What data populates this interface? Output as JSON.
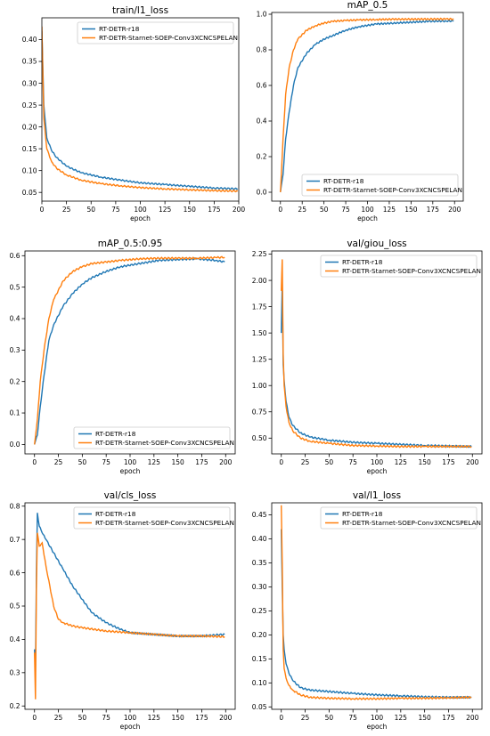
{
  "colors": {
    "baseline": "#1f77b4",
    "proposed": "#ff7f0e"
  },
  "chart_data": [
    {
      "type": "line",
      "title": "train/l1_loss",
      "xlabel": "epoch",
      "ylabel": "",
      "xlim": [
        0,
        200
      ],
      "ylim": [
        0.03,
        0.45
      ],
      "xticks": [
        0,
        25,
        50,
        75,
        100,
        125,
        150,
        175,
        200
      ],
      "yticks": [
        0.05,
        0.1,
        0.15,
        0.2,
        0.25,
        0.3,
        0.35,
        0.4
      ],
      "ytick_labels": [
        "0.05",
        "0.10",
        "0.15",
        "0.20",
        "0.25",
        "0.30",
        "0.35",
        "0.40"
      ],
      "legend": "top-right",
      "series": [
        {
          "name": "RT-DETR-r18",
          "color": "#1f77b4",
          "x": [
            0,
            2,
            5,
            10,
            15,
            25,
            40,
            60,
            80,
            100,
            125,
            150,
            175,
            199
          ],
          "y": [
            0.42,
            0.25,
            0.175,
            0.145,
            0.13,
            0.11,
            0.095,
            0.085,
            0.078,
            0.072,
            0.068,
            0.064,
            0.06,
            0.058
          ]
        },
        {
          "name": "RT-DETR-Starnet-SOEP-Conv3XCNCSPELAN",
          "color": "#ff7f0e",
          "x": [
            0,
            2,
            5,
            10,
            15,
            25,
            40,
            60,
            80,
            100,
            125,
            150,
            175,
            199
          ],
          "y": [
            0.43,
            0.22,
            0.15,
            0.12,
            0.105,
            0.09,
            0.078,
            0.07,
            0.065,
            0.061,
            0.058,
            0.056,
            0.054,
            0.053
          ]
        }
      ]
    },
    {
      "type": "line",
      "title": "mAP_0.5",
      "xlabel": "epoch",
      "ylabel": "",
      "xlim": [
        -10,
        210
      ],
      "ylim": [
        -0.05,
        1.01
      ],
      "xticks": [
        0,
        25,
        50,
        75,
        100,
        125,
        150,
        175,
        200
      ],
      "yticks": [
        0.0,
        0.2,
        0.4,
        0.6,
        0.8,
        1.0
      ],
      "ytick_labels": [
        "0.0",
        "0.2",
        "0.4",
        "0.6",
        "0.8",
        "1.0"
      ],
      "legend": "bottom-right",
      "series": [
        {
          "name": "RT-DETR-r18",
          "color": "#1f77b4",
          "x": [
            0,
            3,
            6,
            10,
            15,
            20,
            30,
            40,
            50,
            60,
            75,
            90,
            110,
            130,
            150,
            170,
            190,
            199
          ],
          "y": [
            0.0,
            0.1,
            0.3,
            0.45,
            0.6,
            0.7,
            0.78,
            0.83,
            0.86,
            0.88,
            0.91,
            0.93,
            0.945,
            0.95,
            0.955,
            0.96,
            0.962,
            0.962
          ]
        },
        {
          "name": "RT-DETR-Starnet-SOEP-Conv3XCNCSPELAN",
          "color": "#ff7f0e",
          "x": [
            0,
            3,
            6,
            10,
            15,
            20,
            30,
            40,
            50,
            60,
            75,
            90,
            110,
            130,
            150,
            170,
            190,
            199
          ],
          "y": [
            0.0,
            0.3,
            0.55,
            0.7,
            0.8,
            0.86,
            0.91,
            0.935,
            0.95,
            0.96,
            0.965,
            0.968,
            0.97,
            0.972,
            0.972,
            0.973,
            0.973,
            0.973
          ]
        }
      ]
    },
    {
      "type": "line",
      "title": "mAP_0.5:0.95",
      "xlabel": "epoch",
      "ylabel": "",
      "xlim": [
        -10,
        210
      ],
      "ylim": [
        -0.03,
        0.615
      ],
      "xticks": [
        0,
        25,
        50,
        75,
        100,
        125,
        150,
        175,
        200
      ],
      "yticks": [
        0.0,
        0.1,
        0.2,
        0.3,
        0.4,
        0.5,
        0.6
      ],
      "ytick_labels": [
        "0.0",
        "0.1",
        "0.2",
        "0.3",
        "0.4",
        "0.5",
        "0.6"
      ],
      "legend": "bottom-right",
      "series": [
        {
          "name": "RT-DETR-r18",
          "color": "#1f77b4",
          "x": [
            0,
            3,
            6,
            10,
            15,
            20,
            30,
            40,
            50,
            60,
            75,
            90,
            110,
            130,
            150,
            170,
            190,
            199
          ],
          "y": [
            0.0,
            0.03,
            0.12,
            0.22,
            0.33,
            0.38,
            0.44,
            0.48,
            0.51,
            0.53,
            0.55,
            0.565,
            0.575,
            0.585,
            0.588,
            0.59,
            0.585,
            0.58
          ]
        },
        {
          "name": "RT-DETR-Starnet-SOEP-Conv3XCNCSPELAN",
          "color": "#ff7f0e",
          "x": [
            0,
            3,
            6,
            10,
            15,
            20,
            30,
            40,
            50,
            60,
            75,
            90,
            110,
            130,
            150,
            170,
            190,
            199
          ],
          "y": [
            0.0,
            0.08,
            0.2,
            0.3,
            0.4,
            0.46,
            0.52,
            0.55,
            0.565,
            0.575,
            0.58,
            0.585,
            0.59,
            0.592,
            0.592,
            0.592,
            0.594,
            0.595
          ]
        }
      ]
    },
    {
      "type": "line",
      "title": "val/giou_loss",
      "xlabel": "epoch",
      "ylabel": "",
      "xlim": [
        -10,
        210
      ],
      "ylim": [
        0.35,
        2.28
      ],
      "xticks": [
        0,
        25,
        50,
        75,
        100,
        125,
        150,
        175,
        200
      ],
      "yticks": [
        0.5,
        0.75,
        1.0,
        1.25,
        1.5,
        1.75,
        2.0,
        2.25
      ],
      "ytick_labels": [
        "0.50",
        "0.75",
        "1.00",
        "1.25",
        "1.50",
        "1.75",
        "2.00",
        "2.25"
      ],
      "legend": "top-right",
      "series": [
        {
          "name": "RT-DETR-r18",
          "color": "#1f77b4",
          "x": [
            0,
            1,
            2,
            3,
            5,
            8,
            12,
            20,
            30,
            50,
            75,
            100,
            125,
            150,
            175,
            199
          ],
          "y": [
            1.5,
            1.98,
            1.2,
            1.05,
            0.85,
            0.7,
            0.62,
            0.55,
            0.51,
            0.48,
            0.46,
            0.45,
            0.44,
            0.43,
            0.425,
            0.42
          ]
        },
        {
          "name": "RT-DETR-Starnet-SOEP-Conv3XCNCSPELAN",
          "color": "#ff7f0e",
          "x": [
            0,
            1,
            2,
            3,
            5,
            8,
            12,
            20,
            30,
            50,
            75,
            100,
            125,
            150,
            175,
            199
          ],
          "y": [
            1.9,
            2.2,
            1.3,
            1.0,
            0.8,
            0.65,
            0.57,
            0.5,
            0.47,
            0.45,
            0.43,
            0.425,
            0.42,
            0.42,
            0.42,
            0.42
          ]
        }
      ]
    },
    {
      "type": "line",
      "title": "val/cls_loss",
      "xlabel": "epoch",
      "ylabel": "",
      "xlim": [
        -10,
        210
      ],
      "ylim": [
        0.19,
        0.81
      ],
      "xticks": [
        0,
        25,
        50,
        75,
        100,
        125,
        150,
        175,
        200
      ],
      "yticks": [
        0.2,
        0.3,
        0.4,
        0.5,
        0.6,
        0.7,
        0.8
      ],
      "ytick_labels": [
        "0.2",
        "0.3",
        "0.4",
        "0.5",
        "0.6",
        "0.7",
        "0.8"
      ],
      "legend": "top-right",
      "series": [
        {
          "name": "RT-DETR-r18",
          "color": "#1f77b4",
          "x": [
            0,
            1,
            2,
            3,
            5,
            8,
            12,
            20,
            30,
            40,
            50,
            60,
            75,
            90,
            100,
            125,
            150,
            175,
            199
          ],
          "y": [
            0.37,
            0.3,
            0.6,
            0.78,
            0.74,
            0.72,
            0.7,
            0.66,
            0.61,
            0.56,
            0.52,
            0.48,
            0.45,
            0.43,
            0.42,
            0.415,
            0.41,
            0.41,
            0.415
          ]
        },
        {
          "name": "RT-DETR-Starnet-SOEP-Conv3XCNCSPELAN",
          "color": "#ff7f0e",
          "x": [
            0,
            1,
            2,
            3,
            5,
            8,
            12,
            20,
            25,
            30,
            40,
            50,
            75,
            100,
            125,
            150,
            175,
            199
          ],
          "y": [
            0.36,
            0.22,
            0.55,
            0.72,
            0.68,
            0.69,
            0.62,
            0.5,
            0.46,
            0.45,
            0.44,
            0.435,
            0.425,
            0.42,
            0.415,
            0.41,
            0.41,
            0.408
          ]
        }
      ]
    },
    {
      "type": "line",
      "title": "val/l1_loss",
      "xlabel": "epoch",
      "ylabel": "",
      "xlim": [
        -10,
        210
      ],
      "ylim": [
        0.045,
        0.475
      ],
      "xticks": [
        0,
        25,
        50,
        75,
        100,
        125,
        150,
        175,
        200
      ],
      "yticks": [
        0.05,
        0.1,
        0.15,
        0.2,
        0.25,
        0.3,
        0.35,
        0.4,
        0.45
      ],
      "ytick_labels": [
        "0.05",
        "0.10",
        "0.15",
        "0.20",
        "0.25",
        "0.30",
        "0.35",
        "0.40",
        "0.45"
      ],
      "legend": "top-right",
      "series": [
        {
          "name": "RT-DETR-r18",
          "color": "#1f77b4",
          "x": [
            0,
            1,
            2,
            3,
            5,
            8,
            12,
            20,
            30,
            50,
            75,
            100,
            125,
            150,
            175,
            199
          ],
          "y": [
            0.42,
            0.3,
            0.2,
            0.17,
            0.14,
            0.12,
            0.105,
            0.09,
            0.085,
            0.082,
            0.078,
            0.075,
            0.073,
            0.071,
            0.07,
            0.07
          ]
        },
        {
          "name": "RT-DETR-Starnet-SOEP-Conv3XCNCSPELAN",
          "color": "#ff7f0e",
          "x": [
            0,
            1,
            2,
            3,
            5,
            8,
            12,
            20,
            30,
            50,
            75,
            100,
            125,
            150,
            175,
            199
          ],
          "y": [
            0.47,
            0.35,
            0.17,
            0.13,
            0.11,
            0.095,
            0.085,
            0.075,
            0.07,
            0.068,
            0.067,
            0.067,
            0.068,
            0.068,
            0.069,
            0.07
          ]
        }
      ]
    }
  ]
}
